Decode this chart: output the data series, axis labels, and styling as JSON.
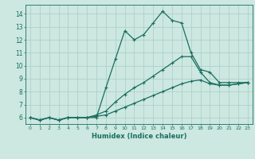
{
  "xlabel": "Humidex (Indice chaleur)",
  "background_color": "#cce8e0",
  "grid_color": "#aaccc4",
  "line_color": "#1a6e60",
  "xlim": [
    -0.5,
    23.5
  ],
  "ylim": [
    5.5,
    14.7
  ],
  "xticks": [
    0,
    1,
    2,
    3,
    4,
    5,
    6,
    7,
    8,
    9,
    10,
    11,
    12,
    13,
    14,
    15,
    16,
    17,
    18,
    19,
    20,
    21,
    22,
    23
  ],
  "yticks": [
    6,
    7,
    8,
    9,
    10,
    11,
    12,
    13,
    14
  ],
  "line1_x": [
    0,
    1,
    2,
    3,
    4,
    5,
    6,
    7,
    8,
    9,
    10,
    11,
    12,
    13,
    14,
    15,
    16,
    17,
    18,
    19,
    20,
    21,
    22,
    23
  ],
  "line1_y": [
    6.0,
    5.8,
    6.0,
    5.8,
    6.0,
    6.0,
    6.0,
    6.0,
    8.3,
    10.5,
    12.7,
    12.0,
    12.4,
    13.3,
    14.2,
    13.5,
    13.3,
    11.0,
    9.7,
    9.5,
    8.7,
    8.7,
    8.7,
    8.7
  ],
  "line2_x": [
    0,
    1,
    2,
    3,
    4,
    5,
    6,
    7,
    8,
    9,
    10,
    11,
    12,
    13,
    14,
    15,
    16,
    17,
    18,
    19,
    20,
    21,
    22,
    23
  ],
  "line2_y": [
    6.0,
    5.8,
    6.0,
    5.8,
    6.0,
    6.0,
    6.0,
    6.2,
    6.5,
    7.2,
    7.8,
    8.3,
    8.7,
    9.2,
    9.7,
    10.2,
    10.7,
    10.7,
    9.5,
    8.7,
    8.5,
    8.5,
    8.6,
    8.7
  ],
  "line3_x": [
    0,
    1,
    2,
    3,
    4,
    5,
    6,
    7,
    8,
    9,
    10,
    11,
    12,
    13,
    14,
    15,
    16,
    17,
    18,
    19,
    20,
    21,
    22,
    23
  ],
  "line3_y": [
    6.0,
    5.8,
    6.0,
    5.8,
    6.0,
    6.0,
    6.0,
    6.1,
    6.2,
    6.5,
    6.8,
    7.1,
    7.4,
    7.7,
    8.0,
    8.3,
    8.6,
    8.8,
    8.9,
    8.6,
    8.5,
    8.5,
    8.6,
    8.7
  ]
}
